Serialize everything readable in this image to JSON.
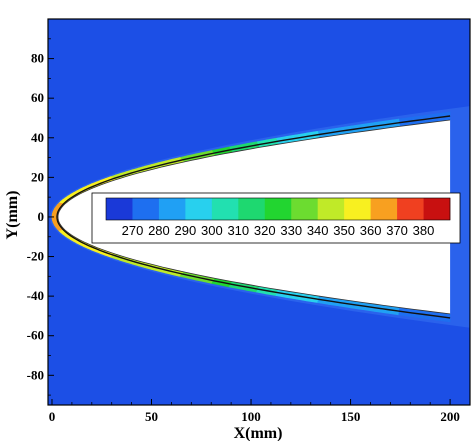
{
  "chart_data": {
    "type": "heatmap",
    "title": "",
    "xlabel": "X(mm)",
    "ylabel": "Y(mm)",
    "xlim": [
      -2,
      210
    ],
    "ylim": [
      -95,
      100
    ],
    "xticks": [
      0,
      50,
      100,
      150,
      200
    ],
    "yticks": [
      -80,
      -60,
      -40,
      -20,
      0,
      20,
      40,
      60,
      80
    ],
    "xtick_labels": [
      "0",
      "50",
      "100",
      "150",
      "200"
    ],
    "ytick_labels": [
      "-80",
      "-60",
      "-40",
      "-20",
      "0",
      "20",
      "40",
      "60",
      "80"
    ],
    "background_color": "#1c4fe6",
    "body_color": "#ffffff",
    "colorbar": {
      "values": [
        270,
        280,
        290,
        300,
        310,
        320,
        330,
        340,
        350,
        360,
        370,
        380
      ],
      "labels": [
        "270",
        "280",
        "290",
        "300",
        "310",
        "320",
        "330",
        "340",
        "350",
        "360",
        "370",
        "380"
      ],
      "colors": [
        "#1a39d8",
        "#1e6ff0",
        "#20a0f4",
        "#28d0ee",
        "#22e0b0",
        "#1ed870",
        "#22d530",
        "#6cdc30",
        "#c0ea28",
        "#f8f020",
        "#f8a020",
        "#f04020",
        "#c81010"
      ]
    },
    "body_profile": {
      "description_none": "",
      "nose_x": 3,
      "upper_end": {
        "x": 200,
        "y": 49
      },
      "lower_end": {
        "x": 200,
        "y": -51
      }
    },
    "shock_layer": {
      "upper_end": {
        "x": 210,
        "y": 56
      },
      "lower_end": {
        "x": 210,
        "y": -56
      },
      "nose_x": -1
    },
    "temperature_along_surface": [
      {
        "x": 0,
        "value": 370
      },
      {
        "x": 10,
        "value": 360
      },
      {
        "x": 30,
        "value": 355
      },
      {
        "x": 55,
        "value": 350
      },
      {
        "x": 75,
        "value": 340
      },
      {
        "x": 95,
        "value": 320
      },
      {
        "x": 120,
        "value": 300
      },
      {
        "x": 150,
        "value": 290
      },
      {
        "x": 200,
        "value": 280
      }
    ]
  }
}
